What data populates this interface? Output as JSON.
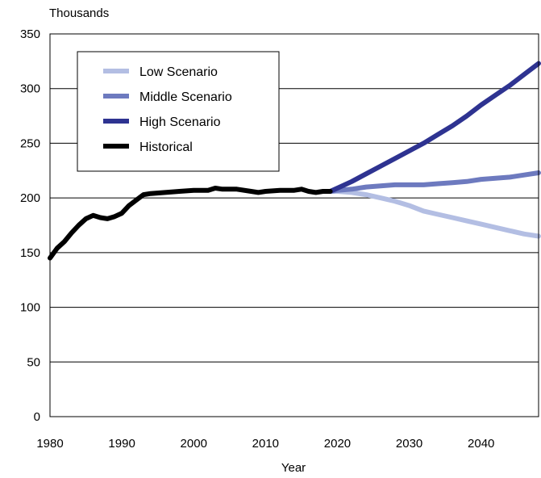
{
  "chart_data": {
    "type": "line",
    "ylabel": "Thousands",
    "xlabel": "Year",
    "xlim": [
      1980,
      2048
    ],
    "ylim": [
      0,
      350
    ],
    "x_ticks": [
      1980,
      1990,
      2000,
      2010,
      2020,
      2030,
      2040
    ],
    "y_ticks": [
      0,
      50,
      100,
      150,
      200,
      250,
      300,
      350
    ],
    "grid": "horizontal",
    "legend_position": "top-left",
    "series": [
      {
        "name": "Low Scenario",
        "color": "#b3bee3",
        "x": [
          2019,
          2020,
          2022,
          2024,
          2026,
          2028,
          2030,
          2032,
          2034,
          2036,
          2038,
          2040,
          2042,
          2044,
          2046,
          2048
        ],
        "y": [
          206,
          206,
          205,
          203,
          200,
          197,
          193,
          188,
          185,
          182,
          179,
          176,
          173,
          170,
          167,
          165
        ]
      },
      {
        "name": "Middle Scenario",
        "color": "#6d7abf",
        "x": [
          2019,
          2020,
          2022,
          2024,
          2026,
          2028,
          2030,
          2032,
          2034,
          2036,
          2038,
          2040,
          2042,
          2044,
          2046,
          2048
        ],
        "y": [
          206,
          207,
          208,
          210,
          211,
          212,
          212,
          212,
          213,
          214,
          215,
          217,
          218,
          219,
          221,
          223
        ]
      },
      {
        "name": "High Scenario",
        "color": "#2e3391",
        "x": [
          2019,
          2020,
          2022,
          2024,
          2026,
          2028,
          2030,
          2032,
          2034,
          2036,
          2038,
          2040,
          2042,
          2044,
          2046,
          2048
        ],
        "y": [
          206,
          209,
          215,
          222,
          229,
          236,
          243,
          250,
          258,
          266,
          275,
          285,
          294,
          303,
          313,
          323
        ]
      },
      {
        "name": "Historical",
        "color": "#000000",
        "x": [
          1980,
          1981,
          1982,
          1983,
          1984,
          1985,
          1986,
          1987,
          1988,
          1989,
          1990,
          1991,
          1992,
          1993,
          1994,
          1996,
          1998,
          2000,
          2002,
          2003,
          2004,
          2006,
          2008,
          2009,
          2010,
          2012,
          2014,
          2015,
          2016,
          2017,
          2018,
          2019
        ],
        "y": [
          145,
          154,
          160,
          168,
          175,
          181,
          184,
          182,
          181,
          183,
          186,
          193,
          198,
          203,
          204,
          205,
          206,
          207,
          207,
          209,
          208,
          208,
          206,
          205,
          206,
          207,
          207,
          208,
          206,
          205,
          206,
          206
        ]
      }
    ]
  }
}
